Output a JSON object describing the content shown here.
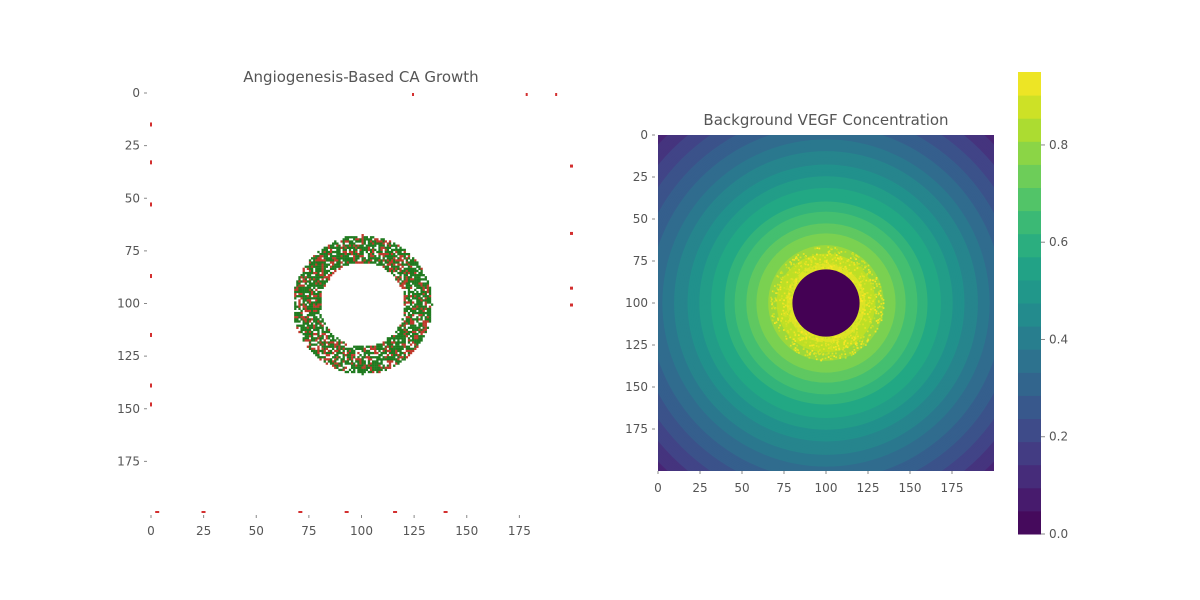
{
  "chart_data": [
    {
      "type": "heatmap",
      "title": "Angiogenesis-Based CA Growth",
      "xlabel": "",
      "ylabel": "",
      "xlim": [
        0,
        200
      ],
      "ylim": [
        200,
        0
      ],
      "xticks": [
        "0",
        "25",
        "50",
        "75",
        "100",
        "125",
        "150",
        "175"
      ],
      "yticks": [
        "0",
        "25",
        "50",
        "75",
        "100",
        "125",
        "150",
        "175"
      ],
      "grid": false,
      "description_of_cells": {
        "ring_center": [
          100,
          100
        ],
        "ring_inner_radius": 20,
        "ring_outer_radius": 33,
        "cell_colors": [
          "#1f7a1f",
          "#c0392b"
        ]
      },
      "edge_vessels": {
        "left": [
          14,
          32,
          52,
          86,
          114,
          138,
          147
        ],
        "right": [
          34,
          66,
          92,
          100
        ],
        "top": [
          124,
          178,
          192
        ],
        "bottom": [
          2,
          24,
          70,
          92,
          115,
          139
        ]
      }
    },
    {
      "type": "heatmap",
      "title": "Background VEGF Concentration",
      "xlabel": "",
      "ylabel": "",
      "xlim": [
        0,
        200
      ],
      "ylim": [
        200,
        0
      ],
      "xticks": [
        "0",
        "25",
        "50",
        "75",
        "100",
        "125",
        "150",
        "175"
      ],
      "yticks": [
        "0",
        "25",
        "50",
        "75",
        "100",
        "125",
        "150",
        "175"
      ],
      "grid": false,
      "field": {
        "center": [
          100,
          100
        ],
        "core_radius": 20,
        "core_value": 0.0,
        "peak_value": 0.95,
        "corner_value": 0.12,
        "contour_levels": 20
      },
      "colorbar": {
        "ticks": [
          "0.0",
          "0.2",
          "0.4",
          "0.6",
          "0.8"
        ],
        "tick_values": [
          0.0,
          0.2,
          0.4,
          0.6,
          0.8
        ],
        "range": [
          0,
          0.95
        ],
        "colormap": "viridis"
      }
    }
  ]
}
